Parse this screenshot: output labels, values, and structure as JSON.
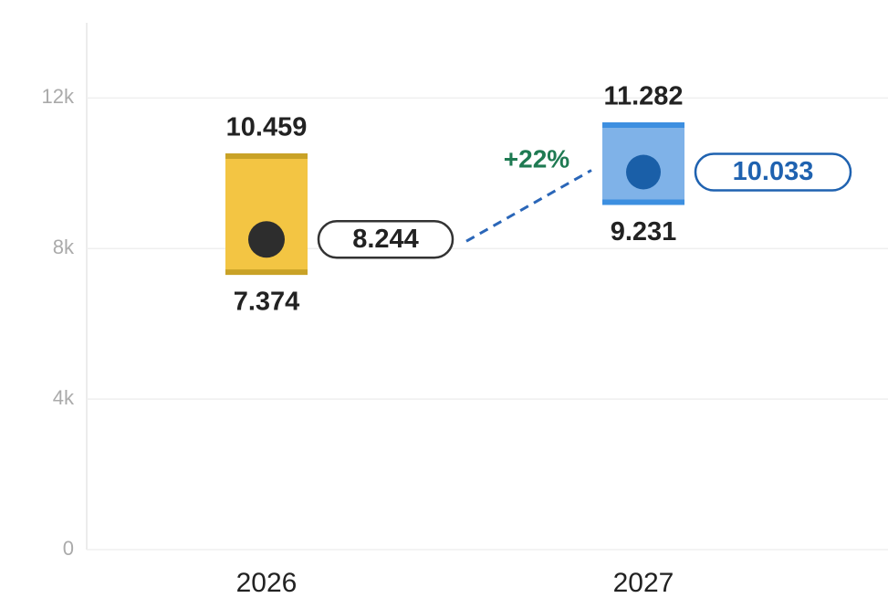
{
  "chart_data": {
    "type": "range",
    "categories": [
      "2026",
      "2027"
    ],
    "high": {
      "values": [
        10459,
        11282
      ],
      "value_labels": [
        "10.459",
        "11.282"
      ]
    },
    "low": {
      "values": [
        7374,
        9231
      ],
      "value_labels": [
        "7.374",
        "9.231"
      ]
    },
    "mid": {
      "values": [
        8244,
        10033
      ],
      "value_labels": [
        "8.244",
        "10.033"
      ]
    },
    "colors": [
      "#f3c543",
      "#7fb2e8"
    ],
    "edge_colors": [
      "#c9a227",
      "#3d8fe0"
    ],
    "dot_colors": [
      "#2d2d2d",
      "#1a5fa8"
    ],
    "change": {
      "value": 22,
      "label": "+22%",
      "color": "#1e7a52"
    },
    "ylim": [
      0,
      14000
    ],
    "yticks": [
      0,
      {
        "value": 4000,
        "label": "4k"
      },
      {
        "value": 8000,
        "label": "8k"
      },
      {
        "value": 12000,
        "label": "12k"
      }
    ],
    "grid": true
  }
}
